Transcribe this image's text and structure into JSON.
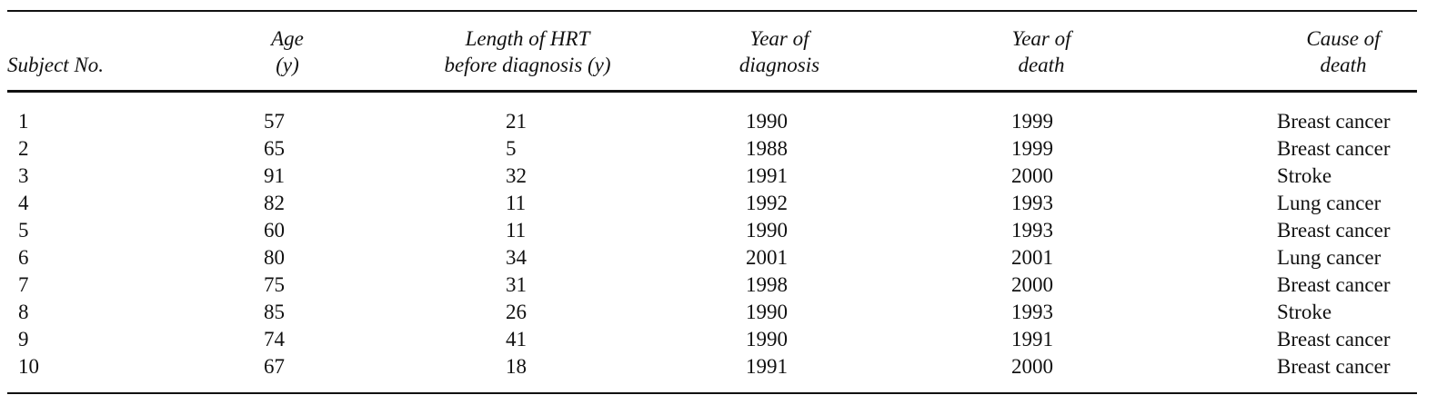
{
  "table": {
    "columns": [
      [
        "Subject No."
      ],
      [
        "Age",
        "(y)"
      ],
      [
        "Length of HRT",
        "before diagnosis (y)"
      ],
      [
        "Year of",
        "diagnosis"
      ],
      [
        "Year of",
        "death"
      ],
      [
        "Cause of",
        "death"
      ]
    ],
    "rows": [
      [
        1,
        57,
        21,
        1990,
        1999,
        "Breast cancer"
      ],
      [
        2,
        65,
        5,
        1988,
        1999,
        "Breast cancer"
      ],
      [
        3,
        91,
        32,
        1991,
        2000,
        "Stroke"
      ],
      [
        4,
        82,
        11,
        1992,
        1993,
        "Lung cancer"
      ],
      [
        5,
        60,
        11,
        1990,
        1993,
        "Breast cancer"
      ],
      [
        6,
        80,
        34,
        2001,
        2001,
        "Lung cancer"
      ],
      [
        7,
        75,
        31,
        1998,
        2000,
        "Breast cancer"
      ],
      [
        8,
        85,
        26,
        1990,
        1993,
        "Stroke"
      ],
      [
        9,
        74,
        41,
        1990,
        1991,
        "Breast cancer"
      ],
      [
        10,
        67,
        18,
        1991,
        2000,
        "Breast cancer"
      ]
    ]
  }
}
